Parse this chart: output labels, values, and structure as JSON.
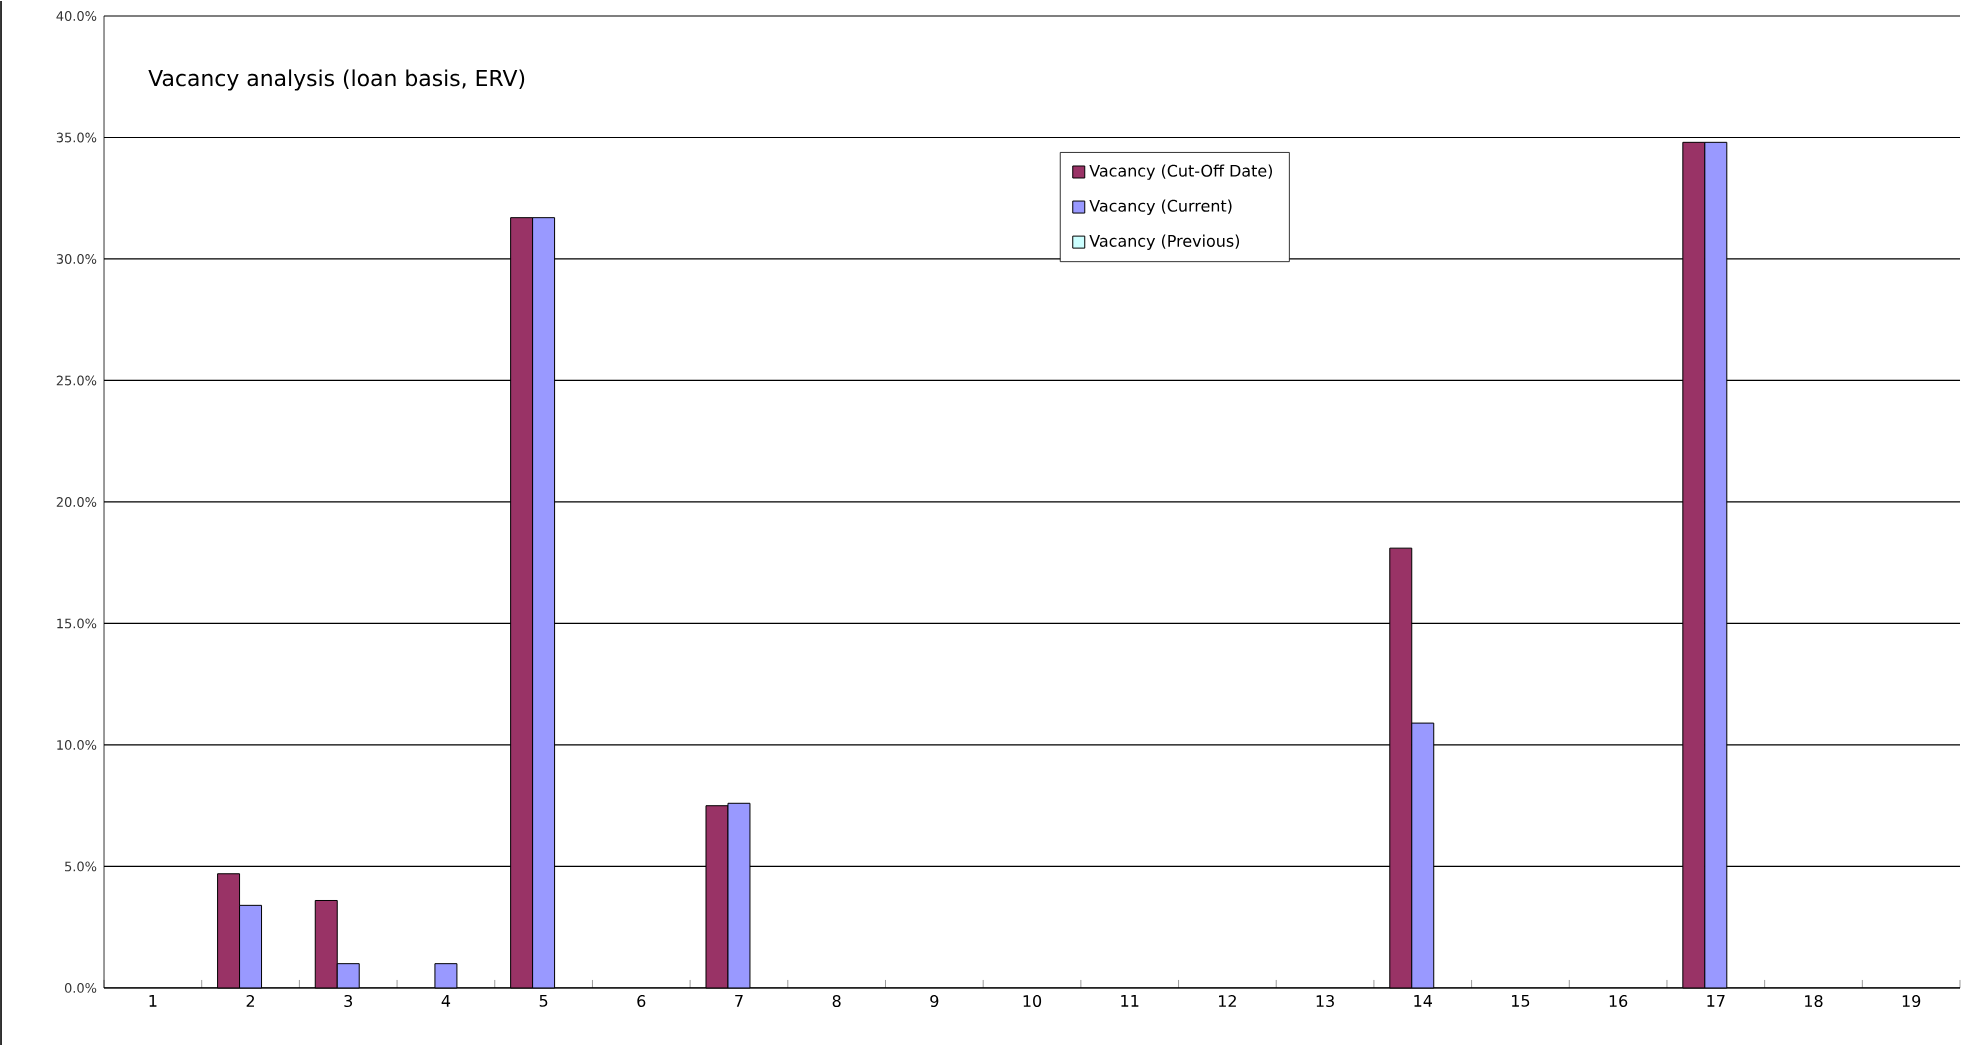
{
  "chart_data": {
    "type": "bar",
    "title": "Vacancy analysis (loan basis, ERV)",
    "categories": [
      "1",
      "2",
      "3",
      "4",
      "5",
      "6",
      "7",
      "8",
      "9",
      "10",
      "11",
      "12",
      "13",
      "14",
      "15",
      "16",
      "17",
      "18",
      "19"
    ],
    "series": [
      {
        "name": "Vacancy (Cut-Off Date)",
        "color": "#993366",
        "values": [
          null,
          4.7,
          3.6,
          null,
          31.7,
          null,
          7.5,
          null,
          null,
          null,
          null,
          null,
          null,
          18.1,
          null,
          null,
          34.8,
          null,
          null
        ]
      },
      {
        "name": "Vacancy (Current)",
        "color": "#9999ff",
        "values": [
          null,
          3.4,
          1.0,
          1.0,
          31.7,
          null,
          7.6,
          null,
          null,
          null,
          null,
          null,
          null,
          10.9,
          null,
          null,
          34.8,
          null,
          null
        ]
      },
      {
        "name": "Vacancy (Previous)",
        "color": "#ccffff",
        "values": [
          null,
          null,
          null,
          null,
          null,
          null,
          null,
          null,
          null,
          null,
          null,
          null,
          null,
          null,
          null,
          null,
          null,
          null,
          null
        ]
      }
    ],
    "ylim": [
      0,
      40
    ],
    "yticks": [
      {
        "value": 0,
        "label": "0.0%"
      },
      {
        "value": 5,
        "label": "5.0%"
      },
      {
        "value": 10,
        "label": "10.0%"
      },
      {
        "value": 15,
        "label": "15.0%"
      },
      {
        "value": 20,
        "label": "20.0%"
      },
      {
        "value": 25,
        "label": "25.0%"
      },
      {
        "value": 30,
        "label": "30.0%"
      },
      {
        "value": 35,
        "label": "35.0%"
      },
      {
        "value": 40,
        "label": "40.0%"
      }
    ],
    "grid": "y",
    "legend": "top"
  }
}
